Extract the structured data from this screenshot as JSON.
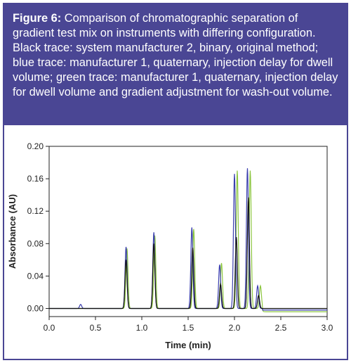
{
  "figure": {
    "caption_label": "Figure 6:",
    "caption_text": " Comparison of chromatographic separation of gradient test mix on instruments with differing configuration. Black trace: system manufacturer 2, binary, original method; blue trace: manufacturer 1, quaternary, injection delay for dwell volume; green trace: manufacturer 1, quaternary, injection delay for dwell volume and gradient adjustment for wash-out volume."
  },
  "colors": {
    "frame": "#4a4694",
    "black_trace": "#111111",
    "blue_trace": "#3b3fae",
    "green_trace": "#8cc63f"
  },
  "chart_data": {
    "type": "line",
    "xlabel": "Time (min)",
    "ylabel": "Absorbance (AU)",
    "xlim": [
      0.0,
      3.0
    ],
    "ylim": [
      -0.01,
      0.2
    ],
    "xticks": [
      0.0,
      0.5,
      1.0,
      1.5,
      2.0,
      2.5,
      3.0
    ],
    "xtick_labels": [
      "0.0",
      "0.5",
      "1.0",
      "1.5",
      "2.0",
      "2.5",
      "3.0"
    ],
    "yticks": [
      0.0,
      0.04,
      0.08,
      0.12,
      0.16,
      0.2
    ],
    "ytick_labels": [
      "0.00",
      "0.04",
      "0.08",
      "0.12",
      "0.16",
      "0.20"
    ],
    "grid": false,
    "legend": "none",
    "series": [
      {
        "color_key": "black_trace",
        "peaks": [
          {
            "t": 0.83,
            "h": 0.06
          },
          {
            "t": 1.13,
            "h": 0.08
          },
          {
            "t": 1.55,
            "h": 0.075
          },
          {
            "t": 1.85,
            "h": 0.03
          },
          {
            "t": 2.02,
            "h": 0.088
          },
          {
            "t": 2.15,
            "h": 0.137
          },
          {
            "t": 2.26,
            "h": 0.016
          }
        ]
      },
      {
        "color_key": "blue_trace",
        "peaks": [
          {
            "t": 0.34,
            "h": 0.005
          },
          {
            "t": 0.83,
            "h": 0.076
          },
          {
            "t": 1.13,
            "h": 0.094
          },
          {
            "t": 1.54,
            "h": 0.1
          },
          {
            "t": 1.84,
            "h": 0.054
          },
          {
            "t": 2.0,
            "h": 0.166
          },
          {
            "t": 2.14,
            "h": 0.173
          },
          {
            "t": 2.25,
            "h": 0.028
          }
        ]
      },
      {
        "color_key": "green_trace",
        "peaks": [
          {
            "t": 0.84,
            "h": 0.074
          },
          {
            "t": 1.14,
            "h": 0.09
          },
          {
            "t": 1.56,
            "h": 0.098
          },
          {
            "t": 1.86,
            "h": 0.056
          },
          {
            "t": 2.03,
            "h": 0.17
          },
          {
            "t": 2.17,
            "h": 0.17
          },
          {
            "t": 2.28,
            "h": 0.028
          }
        ]
      }
    ]
  }
}
